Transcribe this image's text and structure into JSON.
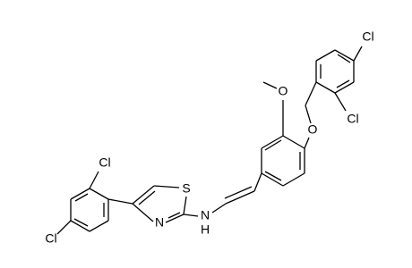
{
  "atoms": [
    {
      "label": "Cl"
    },
    {
      "label": "Cl"
    },
    {
      "label": "O"
    },
    {
      "label": "O"
    },
    {
      "label": "S"
    },
    {
      "label": "N"
    },
    {
      "label": "N"
    },
    {
      "label": "H"
    },
    {
      "label": "Cl"
    },
    {
      "label": "Cl"
    }
  ]
}
